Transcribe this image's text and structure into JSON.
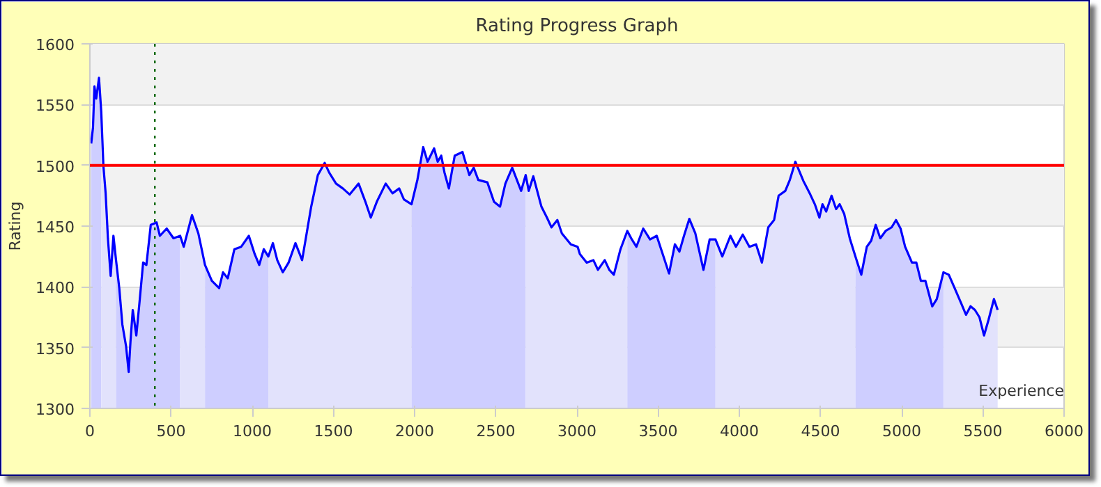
{
  "chart_data": {
    "type": "area",
    "title": "Rating Progress Graph",
    "xlabel": "Experience",
    "ylabel": "Rating",
    "xlim": [
      0,
      6000
    ],
    "ylim": [
      1300,
      1600
    ],
    "xticks": [
      0,
      500,
      1000,
      1500,
      2000,
      2500,
      3000,
      3500,
      4000,
      4500,
      5000,
      5500,
      6000
    ],
    "yticks": [
      1300,
      1350,
      1400,
      1450,
      1500,
      1550,
      1600
    ],
    "grid": "y",
    "marker": "none",
    "line_style": "solid",
    "series": [
      {
        "color": "#ceceff",
        "x": [
          8,
          19,
          28,
          39,
          56,
          70
        ],
        "values": [
          1518,
          1531,
          1565,
          1555,
          1572,
          1544
        ]
      },
      {
        "color": "#e2e2fc",
        "x": [
          70,
          83,
          97,
          111,
          128,
          145,
          161
        ],
        "values": [
          1544,
          1500,
          1477,
          1440,
          1409,
          1442,
          1422
        ]
      },
      {
        "color": "#ceceff",
        "x": [
          161,
          181,
          200,
          223,
          239,
          250,
          264,
          286,
          306,
          328,
          348,
          375,
          411,
          431,
          473,
          515,
          556
        ],
        "values": [
          1422,
          1399,
          1369,
          1351,
          1330,
          1355,
          1381,
          1360,
          1388,
          1420,
          1418,
          1451,
          1453,
          1442,
          1448,
          1440,
          1442
        ]
      },
      {
        "color": "#e2e2fc",
        "x": [
          556,
          578,
          629,
          668,
          709
        ],
        "values": [
          1442,
          1433,
          1459,
          1444,
          1418
        ]
      },
      {
        "color": "#ceceff",
        "x": [
          709,
          751,
          796,
          820,
          849,
          890,
          932,
          979,
          1015,
          1043,
          1071,
          1099
        ],
        "values": [
          1418,
          1405,
          1399,
          1412,
          1407,
          1431,
          1433,
          1442,
          1427,
          1418,
          1431,
          1425
        ]
      },
      {
        "color": "#e2e2fc",
        "x": [
          1099,
          1127,
          1154,
          1188,
          1224,
          1266,
          1307,
          1335,
          1363,
          1404,
          1446,
          1474,
          1516,
          1558,
          1600,
          1655,
          1697,
          1730,
          1767,
          1822,
          1864,
          1905,
          1934,
          1981
        ],
        "values": [
          1425,
          1436,
          1422,
          1412,
          1420,
          1436,
          1422,
          1444,
          1466,
          1492,
          1502,
          1494,
          1485,
          1481,
          1476,
          1485,
          1470,
          1457,
          1470,
          1485,
          1477,
          1481,
          1472,
          1468
        ]
      },
      {
        "color": "#ceceff",
        "x": [
          1981,
          2017,
          2053,
          2080,
          2120,
          2142,
          2164,
          2184,
          2211,
          2247,
          2295,
          2337,
          2364,
          2392,
          2448,
          2489,
          2526,
          2559,
          2601,
          2656,
          2684
        ],
        "values": [
          1468,
          1488,
          1515,
          1503,
          1514,
          1503,
          1508,
          1494,
          1481,
          1508,
          1511,
          1492,
          1498,
          1488,
          1486,
          1470,
          1466,
          1485,
          1498,
          1479,
          1492
        ]
      },
      {
        "color": "#e2e2fc",
        "x": [
          2684,
          2703,
          2731,
          2781,
          2815,
          2843,
          2879,
          2907,
          2962,
          3004,
          3018,
          3060,
          3101,
          3129,
          3171,
          3199,
          3227,
          3268,
          3310
        ],
        "values": [
          1492,
          1479,
          1491,
          1466,
          1457,
          1449,
          1455,
          1444,
          1435,
          1433,
          1427,
          1420,
          1422,
          1414,
          1422,
          1414,
          1410,
          1431,
          1446
        ]
      },
      {
        "color": "#ceceff",
        "x": [
          3310,
          3338,
          3366,
          3408,
          3450,
          3491,
          3533,
          3567,
          3603,
          3631,
          3659,
          3692,
          3729,
          3779,
          3817,
          3853
        ],
        "values": [
          1446,
          1439,
          1433,
          1448,
          1439,
          1442,
          1425,
          1411,
          1435,
          1429,
          1442,
          1456,
          1444,
          1414,
          1439,
          1439
        ]
      },
      {
        "color": "#e2e2fc",
        "x": [
          3853,
          3895,
          3945,
          3979,
          4021,
          4062,
          4103,
          4139,
          4178,
          4214,
          4242,
          4283,
          4311,
          4345,
          4395,
          4437,
          4465,
          4493,
          4512,
          4535,
          4568,
          4596,
          4618,
          4646,
          4680,
          4715
        ],
        "values": [
          1439,
          1425,
          1442,
          1433,
          1443,
          1433,
          1435,
          1420,
          1449,
          1455,
          1475,
          1479,
          1488,
          1503,
          1487,
          1476,
          1468,
          1457,
          1468,
          1462,
          1475,
          1464,
          1468,
          1460,
          1440,
          1425
        ]
      },
      {
        "color": "#ceceff",
        "x": [
          4715,
          4751,
          4785,
          4812,
          4840,
          4868,
          4901,
          4938,
          4965,
          4993,
          5021,
          5063,
          5090,
          5118,
          5146,
          5188,
          5216,
          5257
        ],
        "values": [
          1425,
          1410,
          1433,
          1438,
          1451,
          1440,
          1446,
          1449,
          1455,
          1448,
          1433,
          1420,
          1420,
          1405,
          1405,
          1384,
          1390,
          1412
        ]
      },
      {
        "color": "#e2e2fc",
        "x": [
          5257,
          5290,
          5326,
          5368,
          5396,
          5424,
          5451,
          5479,
          5507,
          5535,
          5568,
          5591
        ],
        "values": [
          1412,
          1410,
          1399,
          1386,
          1377,
          1384,
          1381,
          1375,
          1360,
          1373,
          1390,
          1381
        ]
      },
      {
        "type": "line",
        "color": "#0000ff",
        "x": [
          8,
          19,
          28,
          39,
          56,
          70,
          83,
          97,
          111,
          128,
          145,
          161,
          181,
          200,
          223,
          239,
          250,
          264,
          286,
          306,
          328,
          348,
          375,
          411,
          431,
          473,
          515,
          556,
          578,
          629,
          668,
          709,
          751,
          796,
          820,
          849,
          890,
          932,
          979,
          1015,
          1043,
          1071,
          1099,
          1127,
          1154,
          1188,
          1224,
          1266,
          1307,
          1335,
          1363,
          1404,
          1446,
          1474,
          1516,
          1558,
          1600,
          1655,
          1697,
          1730,
          1767,
          1822,
          1864,
          1905,
          1934,
          1981,
          2017,
          2053,
          2080,
          2120,
          2142,
          2164,
          2184,
          2211,
          2247,
          2295,
          2337,
          2364,
          2392,
          2448,
          2489,
          2526,
          2559,
          2601,
          2656,
          2684,
          2703,
          2731,
          2781,
          2815,
          2843,
          2879,
          2907,
          2962,
          3004,
          3018,
          3060,
          3101,
          3129,
          3171,
          3199,
          3227,
          3268,
          3310,
          3338,
          3366,
          3408,
          3450,
          3491,
          3533,
          3567,
          3603,
          3631,
          3659,
          3692,
          3729,
          3779,
          3817,
          3853,
          3895,
          3945,
          3979,
          4021,
          4062,
          4103,
          4139,
          4178,
          4214,
          4242,
          4283,
          4311,
          4345,
          4395,
          4437,
          4465,
          4493,
          4512,
          4535,
          4568,
          4596,
          4618,
          4646,
          4680,
          4715,
          4751,
          4785,
          4812,
          4840,
          4868,
          4901,
          4938,
          4965,
          4993,
          5021,
          5063,
          5090,
          5118,
          5146,
          5188,
          5216,
          5257,
          5290,
          5326,
          5368,
          5396,
          5424,
          5451,
          5479,
          5507,
          5535,
          5568,
          5591
        ],
        "values": [
          1518,
          1531,
          1565,
          1555,
          1572,
          1544,
          1500,
          1477,
          1440,
          1409,
          1442,
          1422,
          1399,
          1369,
          1351,
          1330,
          1355,
          1381,
          1360,
          1388,
          1420,
          1418,
          1451,
          1453,
          1442,
          1448,
          1440,
          1442,
          1433,
          1459,
          1444,
          1418,
          1405,
          1399,
          1412,
          1407,
          1431,
          1433,
          1442,
          1427,
          1418,
          1431,
          1425,
          1436,
          1422,
          1412,
          1420,
          1436,
          1422,
          1444,
          1466,
          1492,
          1502,
          1494,
          1485,
          1481,
          1476,
          1485,
          1470,
          1457,
          1470,
          1485,
          1477,
          1481,
          1472,
          1468,
          1488,
          1515,
          1503,
          1514,
          1503,
          1508,
          1494,
          1481,
          1508,
          1511,
          1492,
          1498,
          1488,
          1486,
          1470,
          1466,
          1485,
          1498,
          1479,
          1492,
          1479,
          1491,
          1466,
          1457,
          1449,
          1455,
          1444,
          1435,
          1433,
          1427,
          1420,
          1422,
          1414,
          1422,
          1414,
          1410,
          1431,
          1446,
          1439,
          1433,
          1448,
          1439,
          1442,
          1425,
          1411,
          1435,
          1429,
          1442,
          1456,
          1444,
          1414,
          1439,
          1439,
          1425,
          1442,
          1433,
          1443,
          1433,
          1435,
          1420,
          1449,
          1455,
          1475,
          1479,
          1488,
          1503,
          1487,
          1476,
          1468,
          1457,
          1468,
          1462,
          1475,
          1464,
          1468,
          1460,
          1440,
          1425,
          1410,
          1433,
          1438,
          1451,
          1440,
          1446,
          1449,
          1455,
          1448,
          1433,
          1420,
          1420,
          1405,
          1405,
          1384,
          1390,
          1412,
          1410,
          1399,
          1386,
          1377,
          1384,
          1381,
          1375,
          1360,
          1373,
          1390,
          1381
        ]
      }
    ],
    "ref_lines": [
      {
        "axis": "y",
        "value": 1500,
        "color": "#ff0000",
        "line_style": "solid"
      },
      {
        "axis": "x",
        "value": 400,
        "color": "#006600",
        "line_style": "dotted"
      }
    ]
  }
}
